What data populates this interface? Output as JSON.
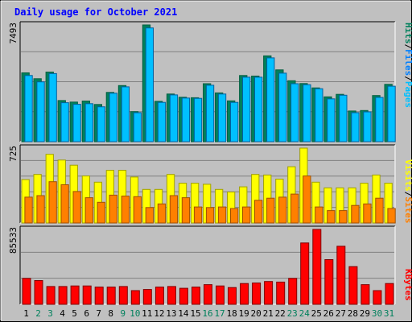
{
  "chart_data": [
    {
      "type": "bar",
      "title": "Daily usage for October 2021",
      "panel": "hits-files-pages",
      "ylabel_max": "7493",
      "ylim": [
        0,
        7493
      ],
      "grid": true,
      "legend": [
        "Pages",
        "Files",
        "Hits"
      ],
      "categories": [
        "1",
        "2",
        "3",
        "4",
        "5",
        "6",
        "7",
        "8",
        "9",
        "10",
        "11",
        "12",
        "13",
        "14",
        "15",
        "16",
        "17",
        "18",
        "19",
        "20",
        "21",
        "22",
        "23",
        "24",
        "25",
        "26",
        "27",
        "28",
        "29",
        "30",
        "31"
      ],
      "series": [
        {
          "name": "Hits",
          "color": "#00805c",
          "values": [
            4420,
            4040,
            4470,
            2640,
            2540,
            2610,
            2390,
            3160,
            3600,
            1930,
            7493,
            2590,
            3060,
            2850,
            2820,
            3720,
            3130,
            2620,
            4250,
            4210,
            5510,
            4610,
            3910,
            3730,
            3450,
            2880,
            3040,
            1970,
            2000,
            2960,
            3680
          ]
        },
        {
          "name": "Files",
          "color": "#00c0ff",
          "values": [
            4250,
            3840,
            4370,
            2500,
            2400,
            2440,
            2240,
            3110,
            3520,
            1860,
            7300,
            2520,
            3000,
            2800,
            2780,
            3620,
            3060,
            2520,
            4140,
            4140,
            5380,
            4400,
            3720,
            3660,
            3400,
            2750,
            2980,
            1860,
            1910,
            2840,
            3560
          ]
        }
      ]
    },
    {
      "type": "bar",
      "panel": "visits-sites",
      "ylabel_max": "725",
      "ylim": [
        0,
        725
      ],
      "grid": true,
      "legend": [
        "Sites",
        "Visits"
      ],
      "categories": [
        "1",
        "2",
        "3",
        "4",
        "5",
        "6",
        "7",
        "8",
        "9",
        "10",
        "11",
        "12",
        "13",
        "14",
        "15",
        "16",
        "17",
        "18",
        "19",
        "20",
        "21",
        "22",
        "23",
        "24",
        "25",
        "26",
        "27",
        "28",
        "29",
        "30",
        "31"
      ],
      "series": [
        {
          "name": "Visits",
          "color": "#ffff00",
          "values": [
            420,
            470,
            665,
            610,
            560,
            455,
            395,
            510,
            510,
            445,
            325,
            325,
            470,
            385,
            385,
            375,
            325,
            300,
            350,
            470,
            465,
            425,
            545,
            725,
            395,
            340,
            340,
            340,
            385,
            465,
            385
          ]
        },
        {
          "name": "Sites",
          "color": "#ff8000",
          "values": [
            250,
            265,
            400,
            370,
            305,
            245,
            200,
            270,
            260,
            255,
            150,
            185,
            265,
            245,
            155,
            150,
            155,
            140,
            155,
            220,
            240,
            250,
            280,
            455,
            155,
            120,
            120,
            170,
            185,
            240,
            140
          ]
        }
      ]
    },
    {
      "type": "bar",
      "panel": "kbytes",
      "ylabel_max": "85533",
      "ylim": [
        0,
        85533
      ],
      "grid": true,
      "legend": [
        "KBytes"
      ],
      "categories": [
        "1",
        "2",
        "3",
        "4",
        "5",
        "6",
        "7",
        "8",
        "9",
        "10",
        "11",
        "12",
        "13",
        "14",
        "15",
        "16",
        "17",
        "18",
        "19",
        "20",
        "21",
        "22",
        "23",
        "24",
        "25",
        "26",
        "27",
        "28",
        "29",
        "30",
        "31"
      ],
      "series": [
        {
          "name": "KBytes",
          "color": "#ff0000",
          "values": [
            29600,
            27100,
            20300,
            20300,
            21000,
            21000,
            19700,
            19700,
            20300,
            15600,
            16900,
            19700,
            20300,
            18300,
            19700,
            22400,
            21000,
            19100,
            23700,
            24400,
            26000,
            25400,
            29600,
            70100,
            85533,
            51000,
            66300,
            43000,
            22400,
            15600,
            23700
          ]
        }
      ]
    }
  ],
  "weekend_color": "#00805c",
  "weekday_color": "#000000",
  "weekend_days": [
    "2",
    "3",
    "9",
    "10",
    "16",
    "17",
    "23",
    "24",
    "30",
    "31"
  ]
}
